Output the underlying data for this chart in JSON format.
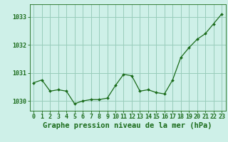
{
  "x": [
    0,
    1,
    2,
    3,
    4,
    5,
    6,
    7,
    8,
    9,
    10,
    11,
    12,
    13,
    14,
    15,
    16,
    17,
    18,
    19,
    20,
    21,
    22,
    23
  ],
  "y": [
    1030.65,
    1030.75,
    1030.35,
    1030.4,
    1030.35,
    1029.9,
    1030.0,
    1030.05,
    1030.05,
    1030.1,
    1030.55,
    1030.95,
    1030.9,
    1030.35,
    1030.4,
    1030.3,
    1030.25,
    1030.75,
    1031.55,
    1031.9,
    1032.2,
    1032.4,
    1032.75,
    1033.1
  ],
  "line_color": "#1a6b1a",
  "marker": "D",
  "marker_size": 2.0,
  "bg_color": "#cef0e8",
  "plot_bg_color": "#cef0e8",
  "grid_color": "#99ccbb",
  "axis_color": "#1a6b1a",
  "xlabel": "Graphe pression niveau de la mer (hPa)",
  "xlabel_fontsize": 7.5,
  "ylabel_ticks": [
    1030,
    1031,
    1032,
    1033
  ],
  "xlim": [
    -0.5,
    23.5
  ],
  "ylim": [
    1029.65,
    1033.45
  ],
  "tick_fontsize": 6.0
}
